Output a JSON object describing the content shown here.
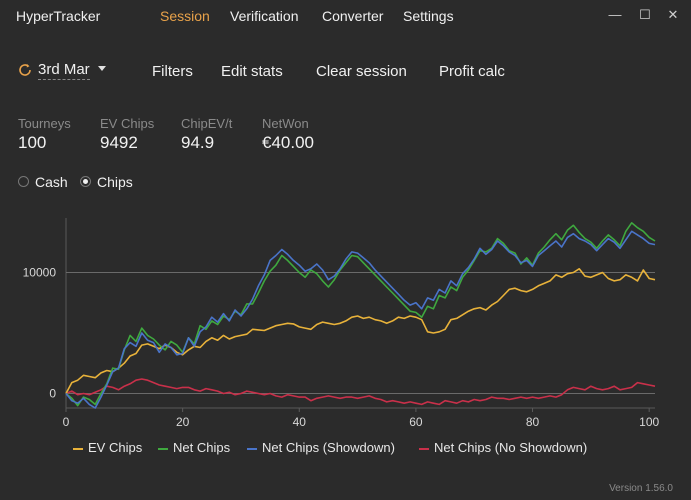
{
  "app": {
    "title": "HyperTracker",
    "version": "Version 1.56.0"
  },
  "nav": {
    "items": [
      "Session",
      "Verification",
      "Converter",
      "Settings"
    ],
    "active": "Session"
  },
  "window": {
    "minimize": "—",
    "maximize": "☐",
    "close": "✕"
  },
  "toolbar": {
    "date": "3rd Mar",
    "filters": "Filters",
    "edit_stats": "Edit stats",
    "clear_session": "Clear session",
    "profit_calc": "Profit calc"
  },
  "stats": [
    {
      "label": "Tourneys",
      "value": "100"
    },
    {
      "label": "EV Chips",
      "value": "9492"
    },
    {
      "label": "ChipEV/t",
      "value": "94.9"
    },
    {
      "label": "NetWon",
      "value": "€40.00"
    }
  ],
  "mode": {
    "options": [
      "Cash",
      "Chips"
    ],
    "selected": "Chips"
  },
  "colors": {
    "ev_chips": "#e8b23a",
    "net_chips": "#3fa83f",
    "net_showdown": "#4a74c9",
    "net_no_showdown": "#c9304a"
  },
  "chart_data": {
    "type": "line",
    "x": [
      0,
      1,
      2,
      3,
      4,
      5,
      6,
      7,
      8,
      9,
      10,
      11,
      12,
      13,
      14,
      15,
      16,
      17,
      18,
      19,
      20,
      21,
      22,
      23,
      24,
      25,
      26,
      27,
      28,
      29,
      30,
      31,
      32,
      33,
      34,
      35,
      36,
      37,
      38,
      39,
      40,
      41,
      42,
      43,
      44,
      45,
      46,
      47,
      48,
      49,
      50,
      51,
      52,
      53,
      54,
      55,
      56,
      57,
      58,
      59,
      60,
      61,
      62,
      63,
      64,
      65,
      66,
      67,
      68,
      69,
      70,
      71,
      72,
      73,
      74,
      75,
      76,
      77,
      78,
      79,
      80,
      81,
      82,
      83,
      84,
      85,
      86,
      87,
      88,
      89,
      90,
      91,
      92,
      93,
      94,
      95,
      96,
      97,
      98,
      99,
      100,
      101
    ],
    "xlim": [
      0,
      101
    ],
    "ylim": [
      -1200,
      14500
    ],
    "xticks": [
      0,
      20,
      40,
      60,
      80,
      100
    ],
    "yticks": [
      0,
      10000
    ],
    "series": [
      {
        "name": "EV Chips",
        "color": "#e8b23a",
        "values": [
          0,
          900,
          1100,
          1500,
          1400,
          1300,
          1700,
          1900,
          1800,
          2100,
          2500,
          3100,
          3300,
          4000,
          4100,
          3900,
          3700,
          4000,
          3800,
          3400,
          3200,
          3600,
          3900,
          3800,
          4300,
          4600,
          4400,
          4800,
          4500,
          4700,
          4800,
          4900,
          5300,
          5250,
          5200,
          5400,
          5600,
          5700,
          5800,
          5750,
          5500,
          5400,
          5300,
          5700,
          5900,
          5800,
          5700,
          5800,
          6000,
          6300,
          6400,
          6200,
          6300,
          6100,
          6000,
          5800,
          6000,
          6300,
          6200,
          6400,
          6300,
          6100,
          5100,
          5000,
          5100,
          5300,
          6100,
          6200,
          6500,
          6800,
          7000,
          7100,
          6900,
          7300,
          7600,
          8100,
          8600,
          8700,
          8500,
          8400,
          8600,
          8900,
          9100,
          9300,
          9800,
          9600,
          9900,
          10000,
          10300,
          9700,
          9600,
          9800,
          10000,
          9500,
          9300,
          9400,
          9800,
          9600,
          9300,
          10200,
          9500,
          9400
        ]
      },
      {
        "name": "Net Chips",
        "color": "#3fa83f",
        "values": [
          0,
          -400,
          -1000,
          -300,
          -500,
          -900,
          0,
          800,
          2100,
          2000,
          3600,
          4800,
          4300,
          5400,
          4800,
          4500,
          4000,
          3600,
          4300,
          4000,
          3400,
          4600,
          4100,
          5600,
          5300,
          6000,
          5700,
          6400,
          6100,
          6800,
          6500,
          7400,
          7400,
          8300,
          9300,
          10100,
          10600,
          11400,
          11000,
          10500,
          10000,
          9600,
          10200,
          9900,
          9300,
          8800,
          9400,
          10200,
          10800,
          11400,
          11300,
          10800,
          10300,
          9800,
          9300,
          8800,
          8300,
          7800,
          7300,
          6800,
          6700,
          6300,
          7200,
          7000,
          8100,
          7900,
          8800,
          8500,
          9600,
          10200,
          11000,
          11800,
          11700,
          12000,
          12800,
          12400,
          11800,
          11600,
          10700,
          11200,
          10600,
          11600,
          12100,
          12700,
          13200,
          12700,
          13500,
          13900,
          13300,
          12800,
          12500,
          12000,
          12600,
          13100,
          12700,
          12200,
          13400,
          14100,
          13700,
          13400,
          12900,
          12600
        ]
      },
      {
        "name": "Net Chips (Showdown)",
        "color": "#4a74c9",
        "values": [
          0,
          -600,
          -800,
          -400,
          -900,
          -1200,
          -300,
          700,
          1800,
          2100,
          3700,
          4200,
          3900,
          5000,
          4400,
          4200,
          3400,
          4100,
          3800,
          3200,
          3300,
          4600,
          3900,
          5100,
          5500,
          6300,
          5900,
          6600,
          6000,
          6900,
          6400,
          7000,
          7800,
          8900,
          9800,
          11000,
          11400,
          11900,
          11500,
          11000,
          10600,
          10100,
          10300,
          10700,
          10200,
          9400,
          9700,
          10300,
          11100,
          11700,
          11600,
          11200,
          10800,
          10200,
          9700,
          9200,
          8700,
          8200,
          7700,
          7300,
          7500,
          7000,
          7900,
          7700,
          8600,
          8300,
          9300,
          8900,
          9900,
          10400,
          11100,
          12000,
          11500,
          11900,
          12600,
          12200,
          11700,
          11400,
          10800,
          11000,
          10500,
          11400,
          11800,
          12200,
          12600,
          12100,
          12900,
          13200,
          12800,
          12600,
          12300,
          11800,
          12300,
          12800,
          12500,
          12000,
          12700,
          13400,
          13100,
          12800,
          12400,
          12300
        ]
      },
      {
        "name": "Net Chips (No Showdown)",
        "color": "#c9304a",
        "values": [
          0,
          200,
          -100,
          0,
          -100,
          100,
          300,
          600,
          500,
          300,
          600,
          800,
          1100,
          1200,
          1100,
          900,
          700,
          600,
          500,
          400,
          500,
          500,
          300,
          200,
          400,
          300,
          200,
          0,
          100,
          -100,
          0,
          200,
          100,
          0,
          -100,
          0,
          -200,
          -300,
          -100,
          -200,
          -300,
          -300,
          -600,
          -400,
          -300,
          -200,
          -300,
          -400,
          -300,
          -300,
          -400,
          -300,
          -200,
          -400,
          -500,
          -700,
          -600,
          -700,
          -800,
          -700,
          -800,
          -900,
          -700,
          -800,
          -900,
          -600,
          -700,
          -800,
          -600,
          -700,
          -500,
          -600,
          -500,
          -300,
          -400,
          -400,
          -500,
          -400,
          -300,
          -400,
          -300,
          -400,
          -300,
          -200,
          -300,
          -100,
          300,
          500,
          400,
          300,
          600,
          400,
          300,
          400,
          600,
          300,
          400,
          500,
          900,
          800,
          700,
          600
        ]
      }
    ]
  }
}
